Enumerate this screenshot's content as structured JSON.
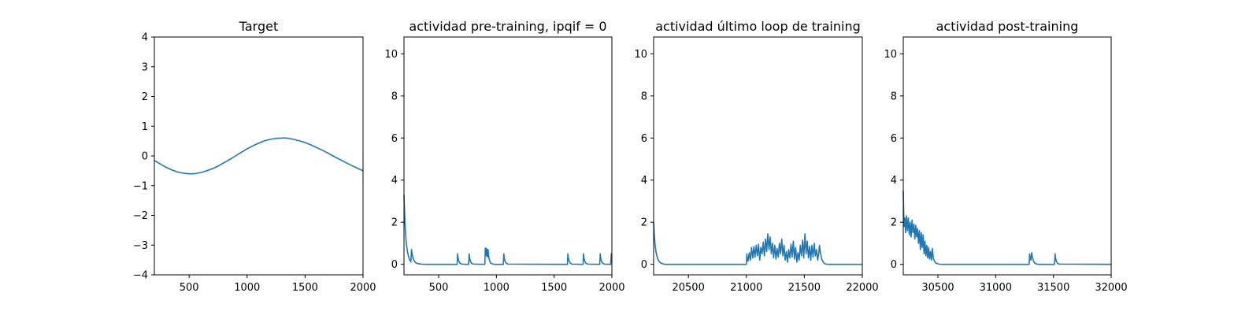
{
  "colors": {
    "series": "#1f77b4",
    "background": "#ffffff",
    "axes": "#000000"
  },
  "chart_data": [
    {
      "type": "line",
      "title": "Target",
      "xlim": [
        200,
        2000
      ],
      "ylim": [
        -4,
        4
      ],
      "xticks": [
        500,
        1000,
        1500,
        2000
      ],
      "yticks": [
        -4,
        -3,
        -2,
        -1,
        0,
        1,
        2,
        3,
        4
      ],
      "grid": false,
      "series": [
        {
          "x": [
            200,
            250,
            300,
            350,
            400,
            450,
            500,
            530,
            560,
            600,
            650,
            700,
            750,
            800,
            850,
            900,
            950,
            1000,
            1050,
            1100,
            1150,
            1200,
            1250,
            1300,
            1330,
            1360,
            1400,
            1450,
            1500,
            1550,
            1600,
            1650,
            1700,
            1750,
            1800,
            1850,
            1900,
            1950,
            2000
          ],
          "y": [
            -0.15,
            -0.27,
            -0.38,
            -0.47,
            -0.54,
            -0.58,
            -0.6,
            -0.6,
            -0.59,
            -0.56,
            -0.5,
            -0.43,
            -0.34,
            -0.23,
            -0.12,
            0.0,
            0.12,
            0.24,
            0.34,
            0.43,
            0.51,
            0.56,
            0.59,
            0.6,
            0.6,
            0.59,
            0.56,
            0.51,
            0.45,
            0.37,
            0.28,
            0.19,
            0.09,
            -0.02,
            -0.12,
            -0.22,
            -0.32,
            -0.41,
            -0.5
          ]
        }
      ]
    },
    {
      "type": "line",
      "title": "actividad pre-training, ipqif = 0",
      "xlim": [
        200,
        2000
      ],
      "ylim": [
        -0.5,
        10.8
      ],
      "xticks": [
        500,
        1000,
        1500,
        2000
      ],
      "yticks": [
        0,
        2,
        4,
        6,
        8,
        10
      ],
      "grid": false,
      "series": [
        {
          "x": [
            200,
            206,
            212,
            220,
            230,
            240,
            250,
            260,
            265,
            272,
            280,
            290,
            300,
            320,
            350,
            400,
            660,
            664,
            668,
            675,
            685,
            700,
            760,
            764,
            768,
            775,
            785,
            800,
            900,
            904,
            908,
            912,
            916,
            920,
            924,
            928,
            932,
            936,
            942,
            950,
            965,
            980,
            1060,
            1064,
            1068,
            1075,
            1085,
            1100,
            1615,
            1619,
            1623,
            1630,
            1640,
            1655,
            1750,
            1754,
            1758,
            1765,
            1775,
            1790,
            1895,
            1899,
            1903,
            1910,
            1920,
            1935,
            1990,
            1995,
            2000
          ],
          "y": [
            3.3,
            2.3,
            1.6,
            1.0,
            0.6,
            0.35,
            0.2,
            0.12,
            0.7,
            0.45,
            0.28,
            0.15,
            0.08,
            0.03,
            0.01,
            0.0,
            0.0,
            0.5,
            0.3,
            0.15,
            0.05,
            0.01,
            0.0,
            0.5,
            0.3,
            0.15,
            0.05,
            0.01,
            0.0,
            0.78,
            0.45,
            0.75,
            0.4,
            0.72,
            0.35,
            0.7,
            0.45,
            0.3,
            0.15,
            0.06,
            0.02,
            0.0,
            0.0,
            0.5,
            0.3,
            0.15,
            0.05,
            0.01,
            0.0,
            0.5,
            0.3,
            0.15,
            0.05,
            0.01,
            0.0,
            0.5,
            0.3,
            0.15,
            0.05,
            0.01,
            0.0,
            0.5,
            0.3,
            0.15,
            0.05,
            0.01,
            0.0,
            0.5,
            0.3
          ]
        }
      ]
    },
    {
      "type": "line",
      "title": "actividad último loop de training",
      "xlim": [
        20200,
        22000
      ],
      "ylim": [
        -0.5,
        10.8
      ],
      "xticks": [
        20500,
        21000,
        21500,
        22000
      ],
      "yticks": [
        0,
        2,
        4,
        6,
        8,
        10
      ],
      "grid": false,
      "series": [
        {
          "x": [
            20200,
            20206,
            20212,
            20220,
            20230,
            20240,
            20252,
            20265,
            20280,
            20300,
            21000,
            21004,
            21008,
            21015,
            21025,
            21035,
            21045,
            21055,
            21065,
            21075,
            21085,
            21095,
            21105,
            21115,
            21125,
            21135,
            21145,
            21155,
            21165,
            21175,
            21185,
            21195,
            21205,
            21215,
            21225,
            21235,
            21245,
            21255,
            21265,
            21275,
            21285,
            21295,
            21305,
            21315,
            21325,
            21335,
            21345,
            21355,
            21365,
            21375,
            21385,
            21395,
            21405,
            21415,
            21425,
            21435,
            21445,
            21455,
            21465,
            21475,
            21485,
            21495,
            21505,
            21515,
            21525,
            21535,
            21545,
            21555,
            21565,
            21575,
            21585,
            21595,
            21605,
            21615,
            21625,
            21630,
            21640,
            21650,
            21665,
            21680,
            21700,
            22000
          ],
          "y": [
            2.0,
            1.4,
            0.95,
            0.6,
            0.35,
            0.2,
            0.1,
            0.05,
            0.02,
            0.0,
            0.0,
            0.5,
            0.3,
            0.15,
            0.55,
            0.2,
            0.8,
            0.3,
            0.85,
            0.35,
            0.9,
            0.4,
            0.95,
            0.2,
            0.8,
            0.5,
            1.05,
            0.4,
            1.2,
            0.6,
            1.45,
            0.7,
            1.3,
            0.5,
            1.0,
            0.3,
            0.9,
            0.25,
            0.75,
            0.35,
            1.0,
            0.5,
            1.2,
            0.4,
            0.9,
            0.2,
            0.6,
            0.1,
            0.7,
            0.3,
            0.95,
            0.35,
            1.1,
            0.25,
            0.8,
            0.1,
            0.55,
            0.2,
            0.9,
            0.4,
            1.15,
            0.3,
            1.45,
            0.5,
            1.1,
            0.3,
            0.85,
            0.2,
            0.9,
            0.35,
            1.0,
            0.4,
            0.7,
            0.2,
            0.55,
            0.9,
            0.5,
            0.25,
            0.08,
            0.02,
            0.0,
            0.0
          ]
        }
      ]
    },
    {
      "type": "line",
      "title": "actividad post-training",
      "xlim": [
        30200,
        32000
      ],
      "ylim": [
        -0.5,
        10.8
      ],
      "xticks": [
        30500,
        31000,
        31500,
        32000
      ],
      "yticks": [
        0,
        2,
        4,
        6,
        8,
        10
      ],
      "grid": false,
      "series": [
        {
          "x": [
            30200,
            30204,
            30208,
            30214,
            30220,
            30228,
            30236,
            30244,
            30252,
            30260,
            30268,
            30276,
            30284,
            30292,
            30300,
            30308,
            30316,
            30324,
            30332,
            30340,
            30348,
            30356,
            30364,
            30372,
            30380,
            30388,
            30396,
            30404,
            30412,
            30420,
            30428,
            30436,
            30444,
            30452,
            30460,
            30470,
            30480,
            30495,
            30510,
            30530,
            31290,
            31294,
            31298,
            31305,
            31312,
            31318,
            31325,
            31335,
            31350,
            31365,
            31510,
            31514,
            31518,
            31525,
            31535,
            31550,
            32000
          ],
          "y": [
            3.5,
            2.4,
            1.8,
            2.2,
            1.5,
            2.3,
            1.6,
            2.2,
            1.4,
            2.0,
            1.3,
            2.1,
            1.5,
            1.9,
            1.2,
            1.85,
            1.3,
            1.7,
            1.0,
            1.6,
            0.7,
            1.5,
            0.8,
            1.4,
            0.5,
            1.1,
            0.4,
            0.9,
            0.3,
            0.8,
            0.25,
            0.6,
            0.2,
            0.75,
            0.3,
            0.15,
            0.07,
            0.03,
            0.01,
            0.0,
            0.0,
            0.5,
            0.3,
            0.2,
            0.55,
            0.35,
            0.2,
            0.08,
            0.02,
            0.0,
            0.0,
            0.5,
            0.3,
            0.15,
            0.05,
            0.01,
            0.0
          ]
        }
      ]
    }
  ]
}
